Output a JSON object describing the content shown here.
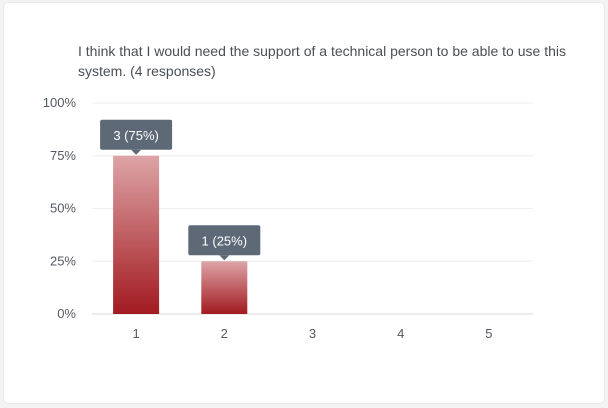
{
  "chart_data": {
    "type": "bar",
    "title": "I think that I would need the support of a technical person to be able to use this system. (4 responses)",
    "categories": [
      "1",
      "2",
      "3",
      "4",
      "5"
    ],
    "values": [
      75,
      25,
      0,
      0,
      0
    ],
    "data_labels": [
      "3 (75%)",
      "1 (25%)",
      "",
      "",
      ""
    ],
    "y_ticks": [
      "0%",
      "25%",
      "50%",
      "75%",
      "100%"
    ],
    "ylim": [
      0,
      100
    ],
    "xlabel": "",
    "ylabel": "",
    "grid": true,
    "colors": {
      "bar_top": "#dda4a6",
      "bar_bottom": "#a21a20",
      "tooltip": "#5d6976",
      "grid": "#eeeeee",
      "axis": "#d8d8d8"
    }
  }
}
